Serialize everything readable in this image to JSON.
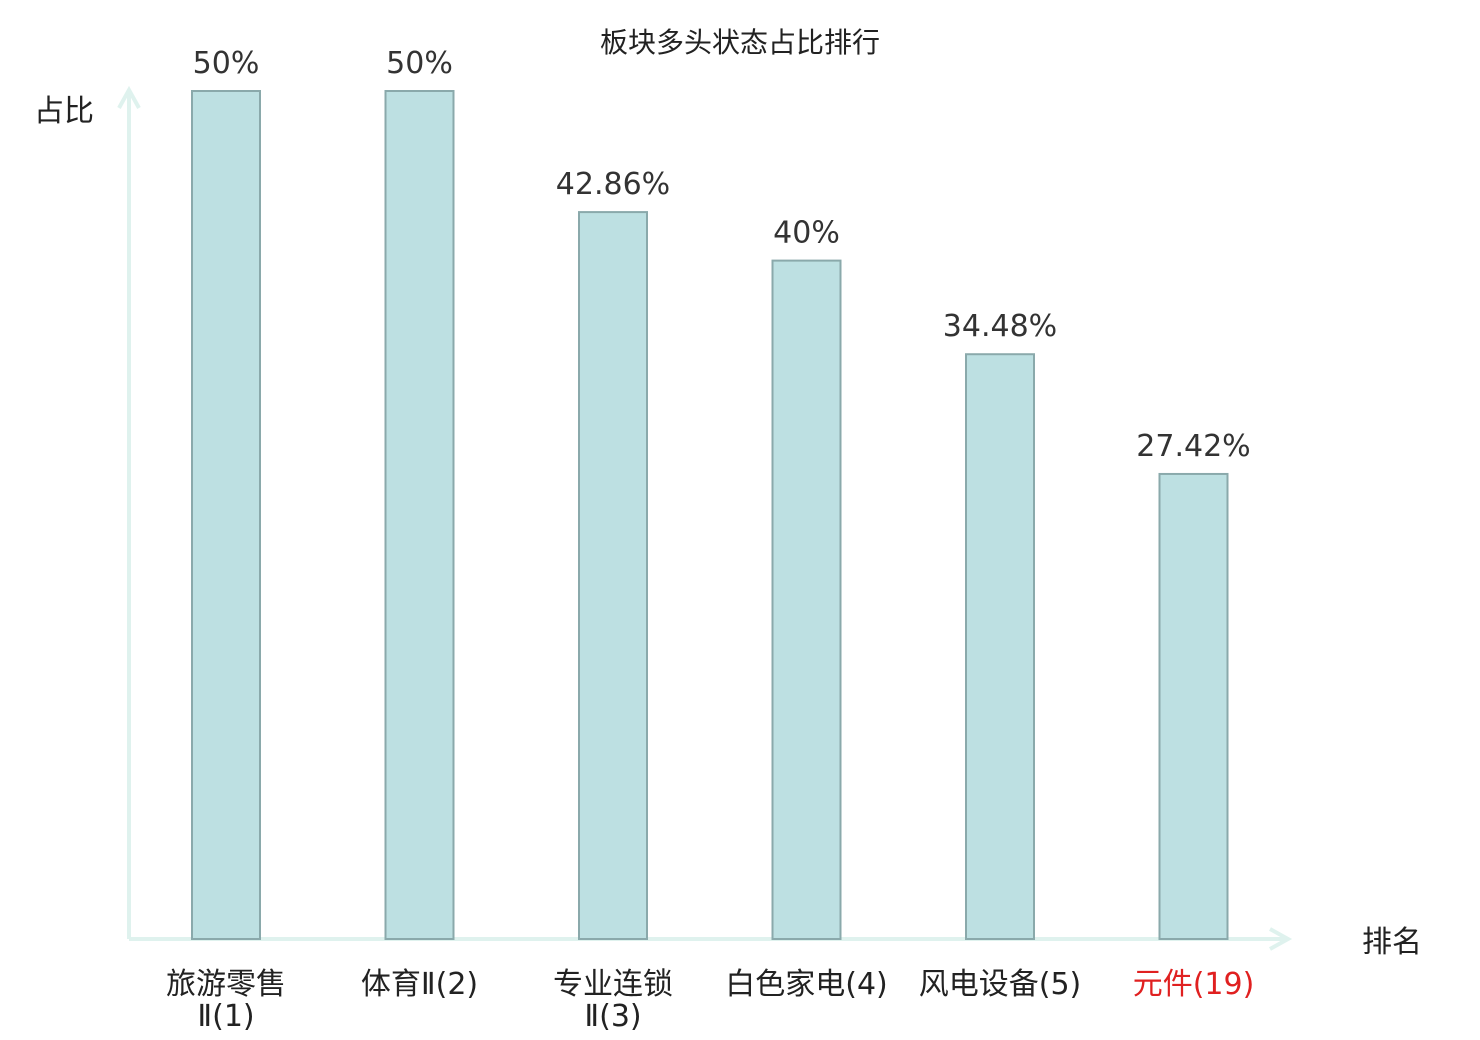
{
  "chart_data": {
    "type": "bar",
    "title": "板块多头状态占比排行",
    "xlabel": "排名",
    "ylabel": "占比",
    "categories": [
      {
        "lines": [
          "旅游零售",
          "Ⅱ(1)"
        ],
        "highlight": false
      },
      {
        "lines": [
          "体育Ⅱ(2)"
        ],
        "highlight": false
      },
      {
        "lines": [
          "专业连锁",
          "Ⅱ(3)"
        ],
        "highlight": false
      },
      {
        "lines": [
          "白色家电(4)"
        ],
        "highlight": false
      },
      {
        "lines": [
          "风电设备(5)"
        ],
        "highlight": false
      },
      {
        "lines": [
          "元件(19)"
        ],
        "highlight": true
      }
    ],
    "values": [
      50,
      50,
      42.86,
      40,
      34.48,
      27.42
    ],
    "value_labels": [
      "50%",
      "50%",
      "42.86%",
      "40%",
      "34.48%",
      "27.42%"
    ],
    "ylim": [
      0,
      50
    ],
    "grid": false
  },
  "colors": {
    "bar_fill": "#bde0e2",
    "bar_stroke": "#8aa9ab",
    "axis": "#dff2ee",
    "text": "#222222",
    "value_text": "#333333",
    "highlight": "#e02020"
  }
}
